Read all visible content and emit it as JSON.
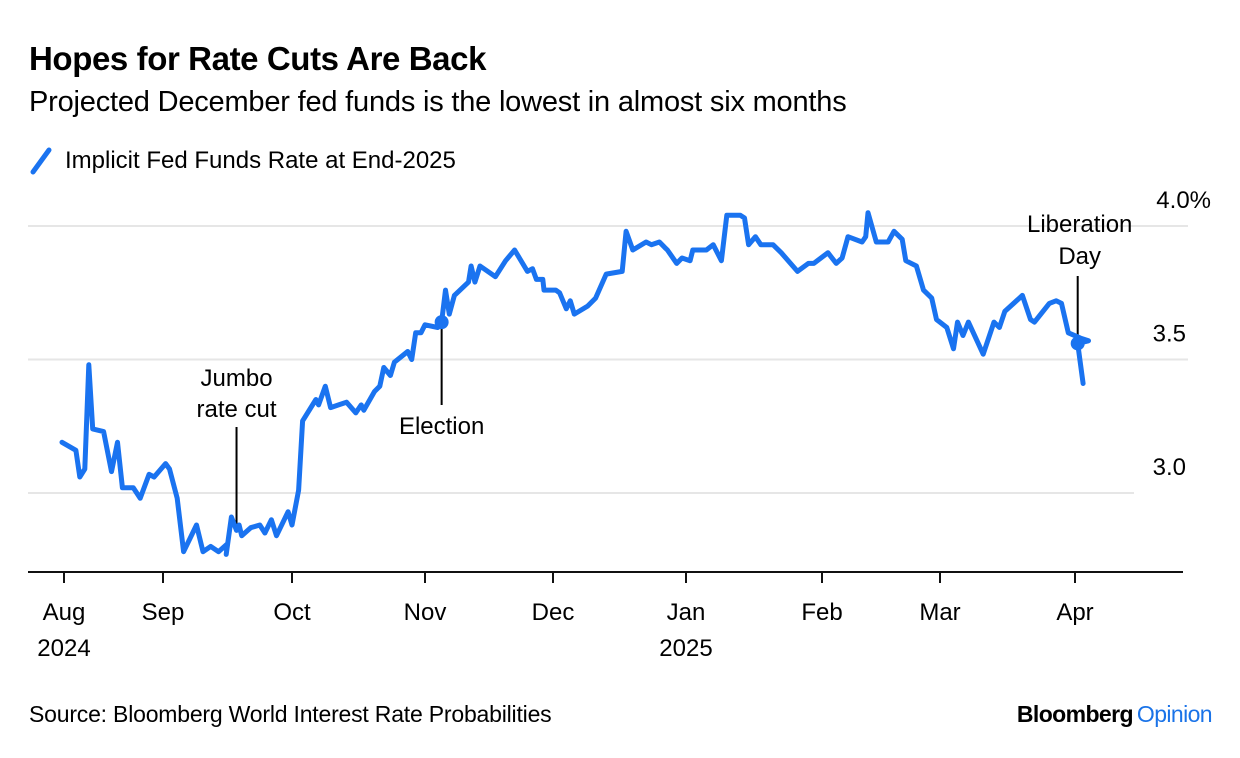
{
  "header": {
    "title": "Hopes for Rate Cuts Are Back",
    "subtitle": "Projected December fed funds is the lowest in almost six months"
  },
  "footer": {
    "source": "Source: Bloomberg World Interest Rate Probabilities",
    "brand_primary": "Bloomberg",
    "brand_secondary": "Opinion"
  },
  "chart_data": {
    "type": "line",
    "title": "Hopes for Rate Cuts Are Back",
    "subtitle": "Projected December fed funds is the lowest in almost six months",
    "xlabel": "",
    "ylabel": "",
    "ylim": [
      2.6,
      4.05
    ],
    "y_ticks": [
      {
        "value": 3.0,
        "label": "3.0"
      },
      {
        "value": 3.5,
        "label": "3.5"
      },
      {
        "value": 4.0,
        "label": "4.0%"
      }
    ],
    "y_axis_side": "right",
    "grid": true,
    "legend_position": "top-left",
    "x_unit": "months since Aug 1 2024 (fractional)",
    "xlim": [
      -0.25,
      8.5
    ],
    "x_ticks": [
      {
        "pos": 0,
        "label": "Aug",
        "sublabel": "2024"
      },
      {
        "pos": 1,
        "label": "Sep",
        "sublabel": ""
      },
      {
        "pos": 2,
        "label": "Oct",
        "sublabel": ""
      },
      {
        "pos": 3,
        "label": "Nov",
        "sublabel": ""
      },
      {
        "pos": 4,
        "label": "Dec",
        "sublabel": ""
      },
      {
        "pos": 5,
        "label": "Jan",
        "sublabel": "2025"
      },
      {
        "pos": 6,
        "label": "Feb",
        "sublabel": ""
      },
      {
        "pos": 7,
        "label": "Mar",
        "sublabel": ""
      },
      {
        "pos": 8,
        "label": "Apr",
        "sublabel": ""
      }
    ],
    "series": [
      {
        "name": "Implicit Fed Funds Rate at End-2025",
        "color": "#1a73f0",
        "x": [
          -0.02,
          0.12,
          0.16,
          0.21,
          0.25,
          0.29,
          0.4,
          0.48,
          0.54,
          0.59,
          0.7,
          0.77,
          0.86,
          0.91,
          1.02,
          1.05,
          1.11,
          1.16,
          1.26,
          1.31,
          1.37,
          1.43,
          1.5,
          1.49,
          1.53,
          1.57,
          1.59,
          1.61,
          1.68,
          1.75,
          1.79,
          1.84,
          1.88,
          1.97,
          2.0,
          2.05,
          2.08,
          2.18,
          2.2,
          2.25,
          2.29,
          2.35,
          2.41,
          2.48,
          2.52,
          2.54,
          2.62,
          2.66,
          2.69,
          2.74,
          2.77,
          2.87,
          2.9,
          2.93,
          2.97,
          3.0,
          3.1,
          3.13,
          3.16,
          3.19,
          3.23,
          3.34,
          3.36,
          3.39,
          3.43,
          3.55,
          3.63,
          3.7,
          3.8,
          3.84,
          3.87,
          3.92,
          3.93,
          4.02,
          4.05,
          4.1,
          4.13,
          4.16,
          4.26,
          4.32,
          4.4,
          4.52,
          4.55,
          4.6,
          4.7,
          4.74,
          4.8,
          4.84,
          4.86,
          4.93,
          4.97,
          5.03,
          5.05,
          5.15,
          5.2,
          5.26,
          5.3,
          5.4,
          5.43,
          5.46,
          5.51,
          5.55,
          5.64,
          5.7,
          5.82,
          5.9,
          5.94,
          6.05,
          6.12,
          6.17,
          6.22,
          6.34,
          6.37,
          6.39,
          6.46,
          6.56,
          6.61,
          6.68,
          6.71,
          6.8,
          6.86,
          6.93,
          6.97,
          7.05,
          7.1,
          7.13,
          7.17,
          7.21,
          7.32,
          7.4,
          7.44,
          7.48,
          7.61,
          7.67,
          7.7,
          7.81,
          7.86,
          7.9,
          7.95,
          8.04,
          8.1,
          8.02,
          8.06
        ],
        "values": [
          3.19,
          3.16,
          3.06,
          3.09,
          3.48,
          3.24,
          3.23,
          3.08,
          3.19,
          3.02,
          3.02,
          2.98,
          3.07,
          3.06,
          3.11,
          3.09,
          2.98,
          2.78,
          2.88,
          2.78,
          2.8,
          2.78,
          2.81,
          2.77,
          2.91,
          2.86,
          2.88,
          2.84,
          2.87,
          2.88,
          2.85,
          2.9,
          2.84,
          2.93,
          2.88,
          3.01,
          3.27,
          3.35,
          3.33,
          3.4,
          3.32,
          3.33,
          3.34,
          3.3,
          3.33,
          3.31,
          3.38,
          3.4,
          3.47,
          3.44,
          3.49,
          3.53,
          3.5,
          3.6,
          3.6,
          3.63,
          3.62,
          3.64,
          3.76,
          3.67,
          3.74,
          3.79,
          3.85,
          3.79,
          3.85,
          3.81,
          3.87,
          3.91,
          3.83,
          3.84,
          3.8,
          3.8,
          3.76,
          3.76,
          3.75,
          3.69,
          3.72,
          3.67,
          3.7,
          3.73,
          3.82,
          3.83,
          3.98,
          3.91,
          3.94,
          3.93,
          3.94,
          3.92,
          3.91,
          3.86,
          3.88,
          3.87,
          3.91,
          3.91,
          3.93,
          3.87,
          4.04,
          4.04,
          4.03,
          3.93,
          3.96,
          3.93,
          3.93,
          3.9,
          3.83,
          3.86,
          3.86,
          3.9,
          3.86,
          3.88,
          3.96,
          3.94,
          3.96,
          4.05,
          3.94,
          3.94,
          3.98,
          3.95,
          3.87,
          3.85,
          3.76,
          3.73,
          3.65,
          3.62,
          3.54,
          3.64,
          3.59,
          3.64,
          3.52,
          3.64,
          3.62,
          3.68,
          3.74,
          3.65,
          3.64,
          3.71,
          3.72,
          3.71,
          3.6,
          3.58,
          3.57,
          3.56,
          3.41
        ]
      }
    ],
    "annotations": [
      {
        "label_lines": [
          "Jumbo",
          "rate cut"
        ],
        "x": 1.57,
        "value": 2.86,
        "marker": false
      },
      {
        "label_lines": [
          "Election"
        ],
        "x": 3.13,
        "value": 3.64,
        "marker": true
      },
      {
        "label_lines": [
          "Liberation",
          "Day"
        ],
        "x": 8.02,
        "value": 3.56,
        "marker": true
      }
    ]
  }
}
